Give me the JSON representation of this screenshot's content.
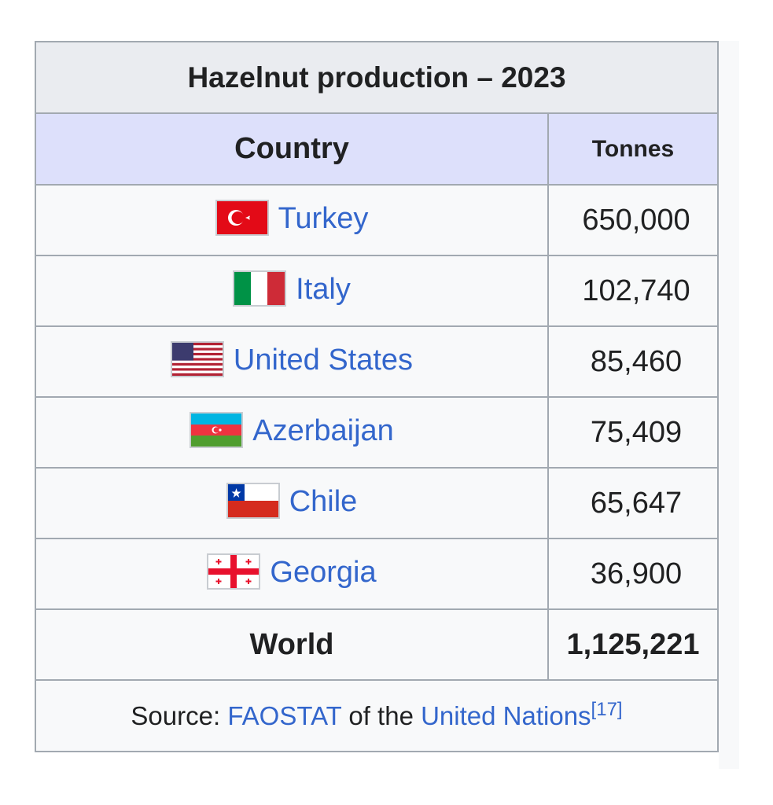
{
  "title": "Hazelnut production – 2023",
  "headers": {
    "country": "Country",
    "tonnes": "Tonnes"
  },
  "rows": [
    {
      "country": "Turkey",
      "flag": "turkey-flag-icon",
      "tonnes": "650,000"
    },
    {
      "country": "Italy",
      "flag": "italy-flag-icon",
      "tonnes": "102,740"
    },
    {
      "country": "United States",
      "flag": "usa-flag-icon",
      "tonnes": "85,460"
    },
    {
      "country": "Azerbaijan",
      "flag": "azerbaijan-flag-icon",
      "tonnes": "75,409"
    },
    {
      "country": "Chile",
      "flag": "chile-flag-icon",
      "tonnes": "65,647"
    },
    {
      "country": "Georgia",
      "flag": "georgia-flag-icon",
      "tonnes": "36,900"
    }
  ],
  "world": {
    "label": "World",
    "tonnes": "1,125,221"
  },
  "source": {
    "prefix": "Source: ",
    "link1": "FAOSTAT",
    "middle": " of the ",
    "link2": "United Nations",
    "ref": "[17]"
  },
  "colors": {
    "link": "#3366cc",
    "header_bg": "#dde0fb",
    "title_bg": "#eaecf0",
    "border": "#a2a9b1"
  }
}
